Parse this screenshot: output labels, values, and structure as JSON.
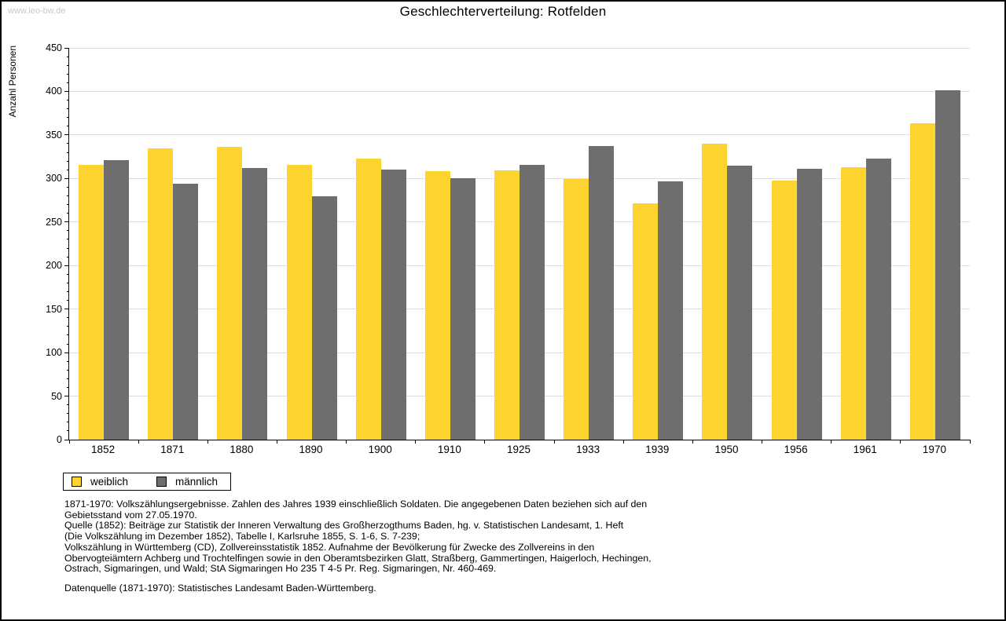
{
  "watermark": "www.leo-bw.de",
  "title": "Geschlechterverteilung: Rotfelden",
  "chart_data": {
    "type": "bar",
    "title": "Geschlechterverteilung: Rotfelden",
    "xlabel": "",
    "ylabel": "Anzahl Personen",
    "ylim": [
      0,
      450
    ],
    "ytick_step": 50,
    "y_minor_tick_step": 10,
    "grid": true,
    "legend_position": "bottom-left",
    "categories": [
      "1852",
      "1871",
      "1880",
      "1890",
      "1900",
      "1910",
      "1925",
      "1933",
      "1939",
      "1950",
      "1956",
      "1961",
      "1970"
    ],
    "series": [
      {
        "name": "weiblich",
        "color": "#FCD32F",
        "values": [
          316,
          335,
          336,
          316,
          323,
          308,
          309,
          299,
          271,
          340,
          298,
          313,
          363
        ]
      },
      {
        "name": "männlich",
        "color": "#6E6E6E",
        "values": [
          321,
          294,
          312,
          280,
          310,
          300,
          316,
          337,
          297,
          315,
          311,
          323,
          401
        ]
      }
    ]
  },
  "footnotes": {
    "lines": [
      "1871-1970: Volkszählungsergebnisse. Zahlen des Jahres 1939 einschließlich Soldaten. Die angegebenen Daten beziehen sich auf den",
      "Gebietsstand vom 27.05.1970.",
      "Quelle (1852): Beiträge zur Statistik der Inneren Verwaltung des Großherzogthums Baden, hg. v. Statistischen Landesamt, 1. Heft",
      "(Die Volkszählung im Dezember 1852), Tabelle I, Karlsruhe 1855, S. 1-6, S. 7-239;",
      "Volkszählung in Württemberg (CD), Zollvereinsstatistik 1852. Aufnahme der Bevölkerung für Zwecke des Zollvereins in den",
      "Obervogteiämtern Achberg und Trochtelfingen sowie in den Oberamtsbezirken Glatt, Straßberg, Gammertingen, Haigerloch, Hechingen,",
      "Ostrach, Sigmaringen, und Wald; StA Sigmaringen Ho 235 T 4-5 Pr. Reg. Sigmaringen, Nr. 460-469."
    ],
    "source": "Datenquelle (1871-1970): Statistisches Landesamt Baden-Württemberg."
  },
  "colors": {
    "gridline": "#dedede",
    "axis": "#000000",
    "watermark_text": "#c9c9c9",
    "frame_border": "#000000"
  }
}
